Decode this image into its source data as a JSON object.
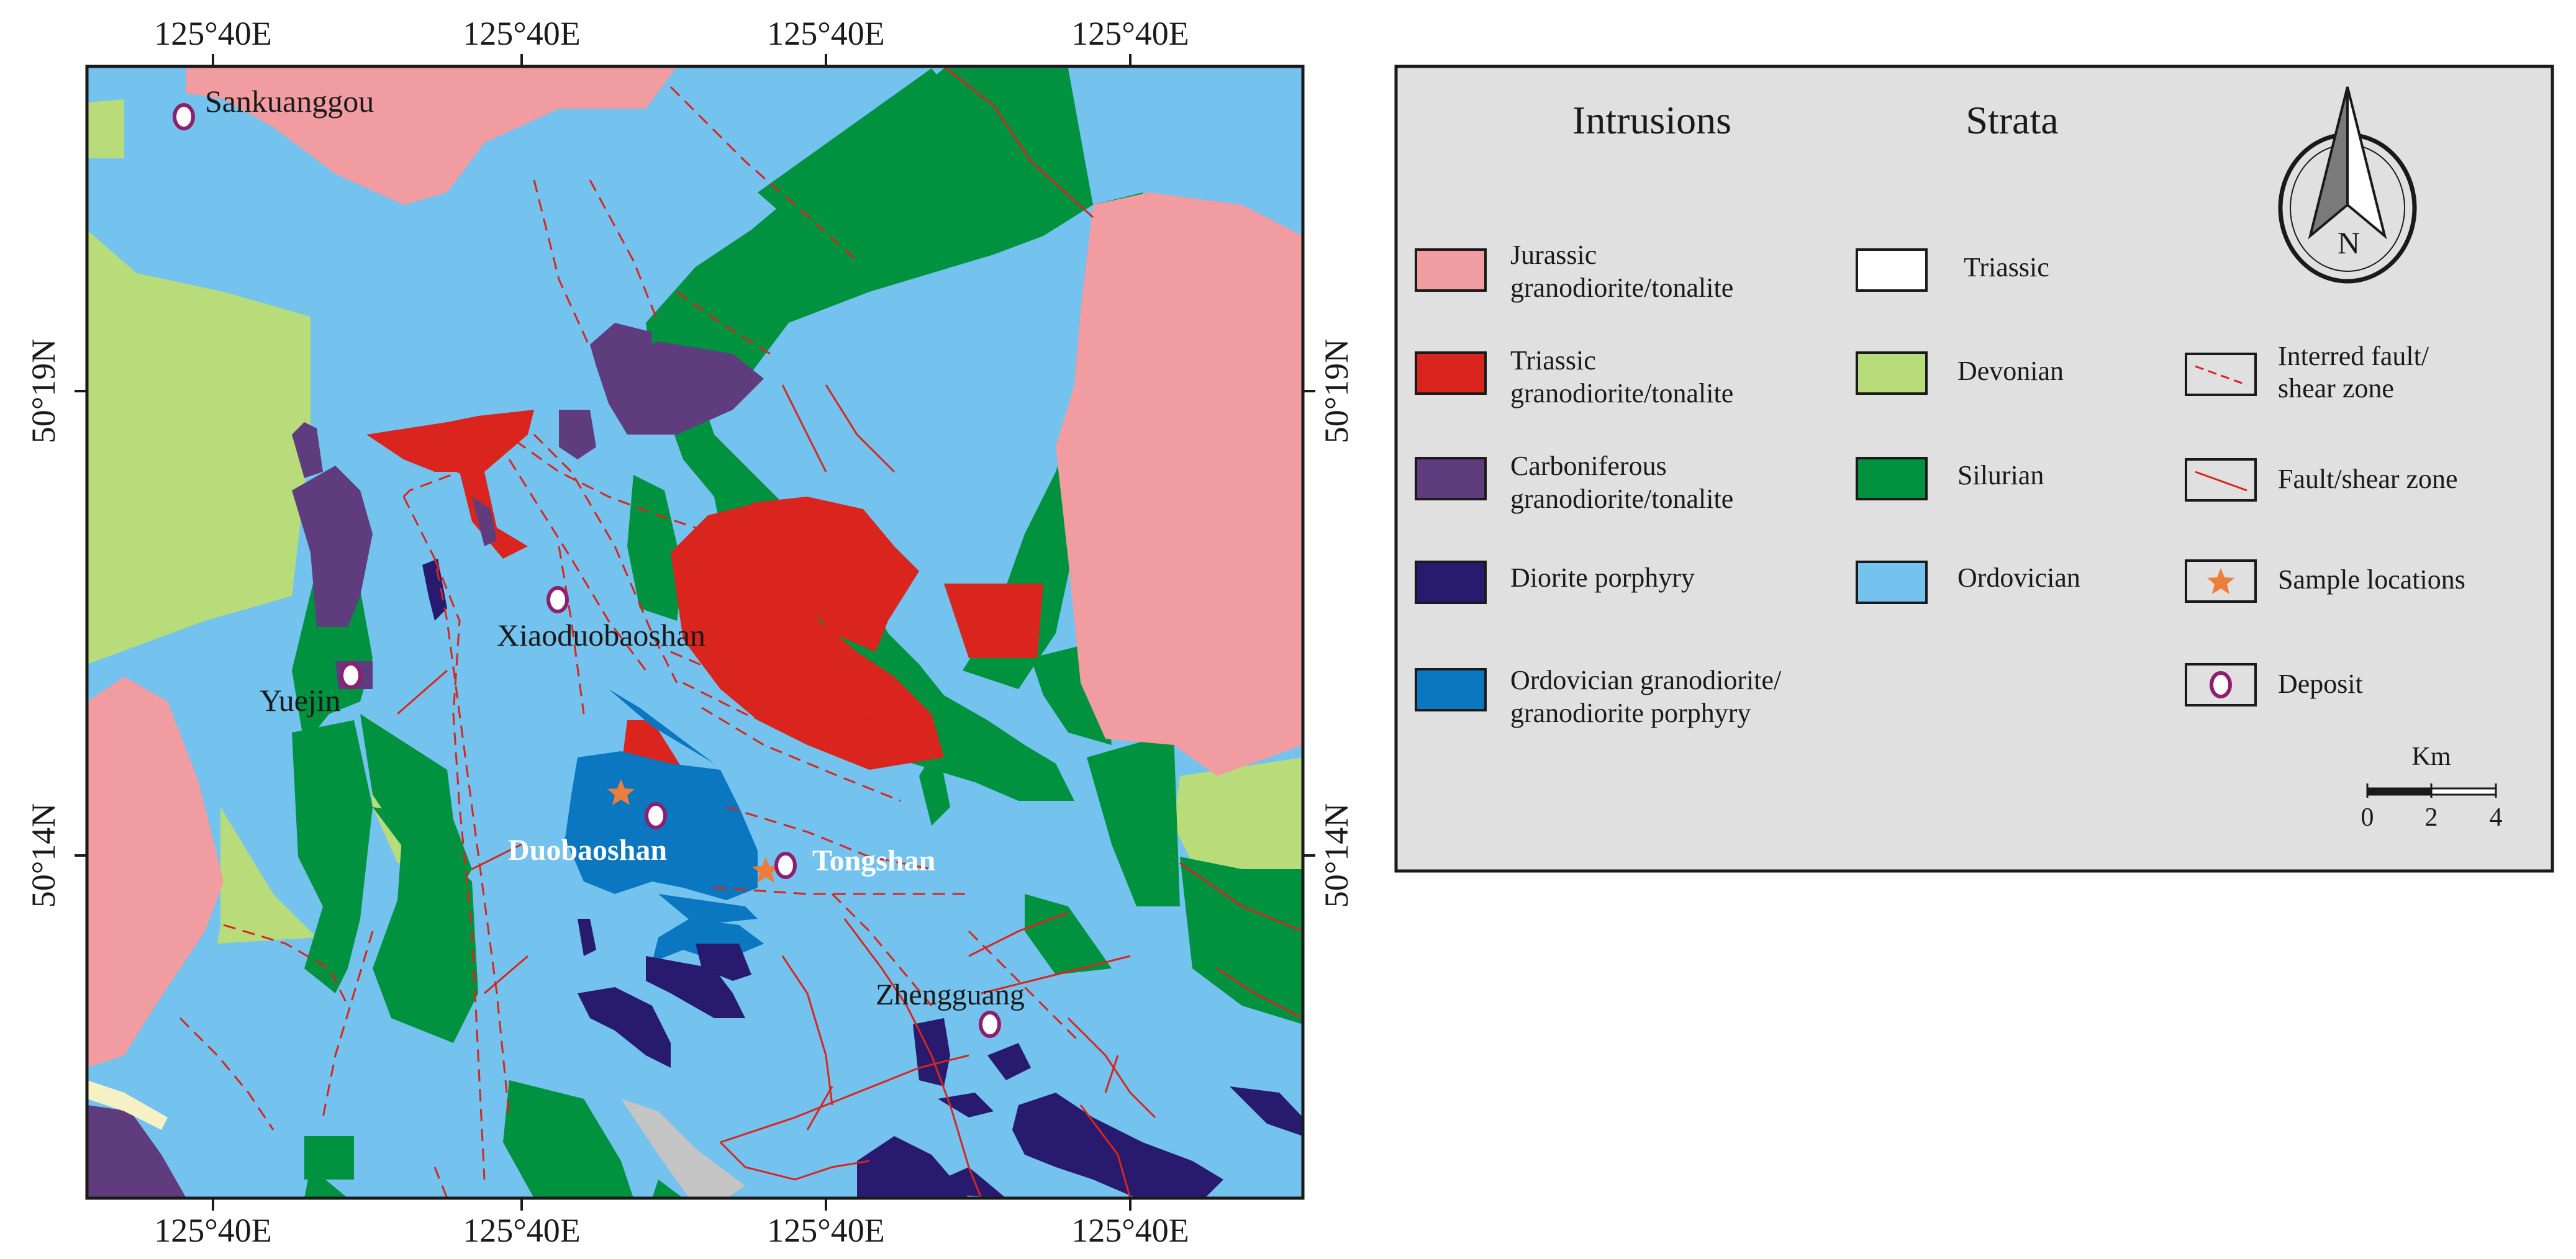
{
  "map": {
    "coords": {
      "top": [
        "125°40E",
        "125°40E",
        "125°40E",
        "125°40E"
      ],
      "bottom": [
        "125°40E",
        "125°40E",
        "125°40E",
        "125°40E"
      ],
      "left": [
        "50°19N",
        "50°14N"
      ],
      "right": [
        "50°19N",
        "50°14N"
      ]
    },
    "places": {
      "sankuanggou": "Sankuanggou",
      "xiaoduobaoshan": "Xiaoduobaoshan",
      "yuejin": "Yuejin",
      "duobaoshan": "Duobaoshan",
      "tongshan": "Tongshan",
      "zhengguang": "Zhengguang"
    },
    "colors": {
      "ordovician": "#74c2ee",
      "silurian": "#00923f",
      "devonian": "#b8dc7a",
      "jurassic_intrusion": "#f09ca0",
      "triassic_intrusion": "#d9251d",
      "carboniferous_intrusion": "#5e3c7e",
      "diorite_porphyry": "#281a6e",
      "ordovician_intrusion": "#0b77c0",
      "fault": "#d9251d",
      "deposit": "#8e1f6e",
      "sample": "#ec7d3a"
    }
  },
  "legend": {
    "headings": {
      "intrusions": "Intrusions",
      "strata": "Strata"
    },
    "intrusions": [
      {
        "line1": "Jurassic",
        "line2": "granodiorite/tonalite"
      },
      {
        "line1": "Triassic",
        "line2": "granodiorite/tonalite"
      },
      {
        "line1": "Carboniferous",
        "line2": "granodiorite/tonalite"
      },
      {
        "line1": "Diorite porphyry",
        "line2": ""
      },
      {
        "line1": "Ordovician granodiorite/",
        "line2": "granodiorite porphyry"
      }
    ],
    "strata": [
      "Triassic",
      "Devonian",
      "Silurian",
      "Ordovician"
    ],
    "symbols": [
      {
        "line1": "Interred fault/",
        "line2": "shear zone"
      },
      {
        "line1": "Fault/shear zone",
        "line2": ""
      },
      {
        "line1": "Sample locations",
        "line2": ""
      },
      {
        "line1": "Deposit",
        "line2": ""
      }
    ],
    "north": "N",
    "scale": {
      "unit": "Km",
      "ticks": [
        "0",
        "2",
        "4"
      ]
    }
  }
}
